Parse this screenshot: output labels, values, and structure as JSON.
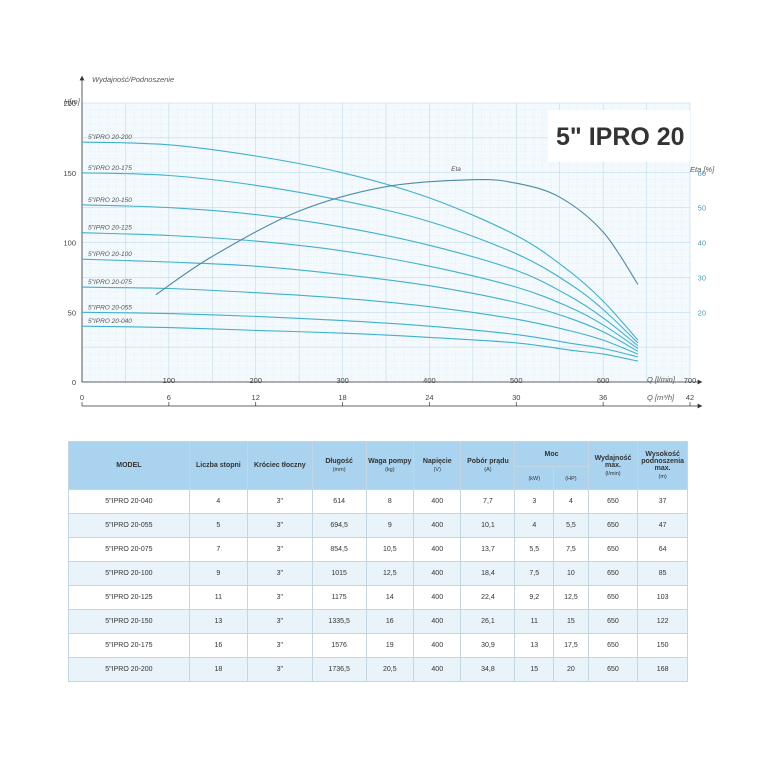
{
  "chart_data": {
    "type": "line",
    "title": "5\" IPRO 20",
    "ylabel": "Wydajność/Podnoszenie",
    "yunit": "H[m]",
    "xlabel_lpm": "Q [l/min]",
    "xlabel_m3h": "Q [m³/h]",
    "eta_label": "Eta [%]",
    "eta_curve_label": "Eta",
    "xlim": [
      0,
      700
    ],
    "ylim": [
      0,
      200
    ],
    "eta_lim": [
      0,
      80
    ],
    "grid": true,
    "x_ticks_lpm": [
      100,
      200,
      300,
      400,
      500,
      600,
      700
    ],
    "x_ticks_m3h": [
      0,
      6,
      12,
      18,
      24,
      30,
      36,
      42
    ],
    "y_ticks": [
      0,
      50,
      100,
      150,
      200
    ],
    "eta_ticks": [
      20,
      30,
      40,
      50,
      60
    ],
    "series": [
      {
        "name": "5\"IPRO 20-200",
        "x": [
          0,
          100,
          200,
          300,
          400,
          500,
          560,
          600,
          640
        ],
        "y": [
          172,
          170,
          162,
          150,
          132,
          105,
          80,
          58,
          30
        ]
      },
      {
        "name": "5\"IPRO 20-175",
        "x": [
          0,
          100,
          200,
          300,
          400,
          500,
          560,
          600,
          640
        ],
        "y": [
          150,
          148,
          141,
          130,
          115,
          92,
          71,
          52,
          28
        ]
      },
      {
        "name": "5\"IPRO 20-150",
        "x": [
          0,
          100,
          200,
          300,
          400,
          500,
          560,
          600,
          640
        ],
        "y": [
          127,
          125,
          120,
          111,
          98,
          80,
          62,
          46,
          26
        ]
      },
      {
        "name": "5\"IPRO 20-125",
        "x": [
          0,
          100,
          200,
          300,
          400,
          500,
          560,
          600,
          640
        ],
        "y": [
          107,
          105,
          101,
          94,
          83,
          68,
          54,
          41,
          24
        ]
      },
      {
        "name": "5\"IPRO 20-100",
        "x": [
          0,
          100,
          200,
          300,
          400,
          500,
          560,
          600,
          640
        ],
        "y": [
          88,
          86,
          83,
          77,
          69,
          57,
          46,
          36,
          22
        ]
      },
      {
        "name": "5\"IPRO 20-075",
        "x": [
          0,
          100,
          200,
          300,
          400,
          500,
          560,
          600,
          640
        ],
        "y": [
          68,
          67,
          64,
          60,
          54,
          45,
          37,
          30,
          20
        ]
      },
      {
        "name": "5\"IPRO 20-055",
        "x": [
          0,
          100,
          200,
          300,
          400,
          500,
          560,
          600,
          640
        ],
        "y": [
          50,
          49,
          47,
          44,
          40,
          34,
          28,
          24,
          18
        ]
      },
      {
        "name": "5\"IPRO 20-040",
        "x": [
          0,
          100,
          200,
          300,
          400,
          500,
          560,
          600,
          640
        ],
        "y": [
          40,
          39,
          37,
          35,
          32,
          28,
          23,
          20,
          15
        ]
      }
    ],
    "eta": {
      "x": [
        85,
        150,
        250,
        350,
        450,
        500,
        550,
        600,
        640
      ],
      "y": [
        25,
        36,
        49,
        56,
        58,
        57,
        53,
        43,
        28
      ]
    }
  },
  "table": {
    "headers": {
      "model": "MODEL",
      "stages": "Liczba stopni",
      "outlet": "Króciec tłoczny",
      "length": "Długość",
      "length_unit": "(mm)",
      "weight": "Waga pompy",
      "weight_unit": "(kg)",
      "voltage": "Napięcie",
      "voltage_unit": "(V)",
      "current": "Pobór prądu",
      "current_unit": "(A)",
      "power": "Moc",
      "power_kw": "(kW)",
      "power_hp": "(HP)",
      "flow": "Wydajność max.",
      "flow_unit": "(l/min)",
      "head": "Wysokość podnoszenia max.",
      "head_unit": "(m)"
    },
    "rows": [
      [
        "5\"IPRO 20-040",
        "4",
        "3\"",
        "614",
        "8",
        "400",
        "7,7",
        "3",
        "4",
        "650",
        "37"
      ],
      [
        "5\"IPRO 20-055",
        "5",
        "3\"",
        "694,5",
        "9",
        "400",
        "10,1",
        "4",
        "5,5",
        "650",
        "47"
      ],
      [
        "5\"IPRO 20-075",
        "7",
        "3\"",
        "854,5",
        "10,5",
        "400",
        "13,7",
        "5,5",
        "7,5",
        "650",
        "64"
      ],
      [
        "5\"IPRO 20-100",
        "9",
        "3\"",
        "1015",
        "12,5",
        "400",
        "18,4",
        "7,5",
        "10",
        "650",
        "85"
      ],
      [
        "5\"IPRO 20-125",
        "11",
        "3\"",
        "1175",
        "14",
        "400",
        "22,4",
        "9,2",
        "12,5",
        "650",
        "103"
      ],
      [
        "5\"IPRO 20-150",
        "13",
        "3\"",
        "1335,5",
        "16",
        "400",
        "26,1",
        "11",
        "15",
        "650",
        "122"
      ],
      [
        "5\"IPRO 20-175",
        "16",
        "3\"",
        "1576",
        "19",
        "400",
        "30,9",
        "13",
        "17,5",
        "650",
        "150"
      ],
      [
        "5\"IPRO 20-200",
        "18",
        "3\"",
        "1736,5",
        "20,5",
        "400",
        "34,8",
        "15",
        "20",
        "650",
        "168"
      ]
    ]
  },
  "colors": {
    "curve": "#3fb1cc",
    "eta": "#4d8aa6",
    "grid_major": "#b6d7e8",
    "grid_minor": "#deedf5",
    "plot_bg": "#f3f9fc",
    "header_bg": "#a9d3ee"
  }
}
